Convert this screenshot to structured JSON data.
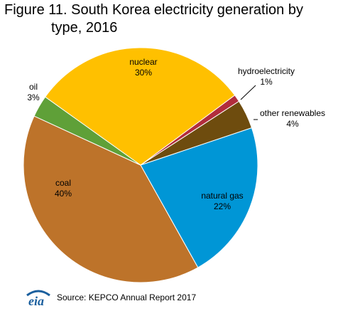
{
  "title_line1": "Figure 11. South Korea electricity generation by",
  "title_line2": "type, 2016",
  "source": "Source: KEPCO Annual Report 2017",
  "logo_text": "eia",
  "chart_data": {
    "type": "pie",
    "title": "Figure 11. South Korea electricity generation by type, 2016",
    "unit": "%",
    "slices": [
      {
        "label": "nuclear",
        "value": 30,
        "value_label": "30%",
        "color": "#FFC000"
      },
      {
        "label": "hydroelectricity",
        "value": 1,
        "value_label": "1%",
        "color": "#B22D3C"
      },
      {
        "label": "other renewables",
        "value": 4,
        "value_label": "4%",
        "color": "#6E4C0E"
      },
      {
        "label": "natural gas",
        "value": 22,
        "value_label": "22%",
        "color": "#0096D6"
      },
      {
        "label": "coal",
        "value": 40,
        "value_label": "40%",
        "color": "#BD732A"
      },
      {
        "label": "oil",
        "value": 3,
        "value_label": "3%",
        "color": "#5FA038"
      }
    ]
  },
  "colors": {
    "logo_blue": "#1A5F9E",
    "logo_green": "#5FA038"
  }
}
